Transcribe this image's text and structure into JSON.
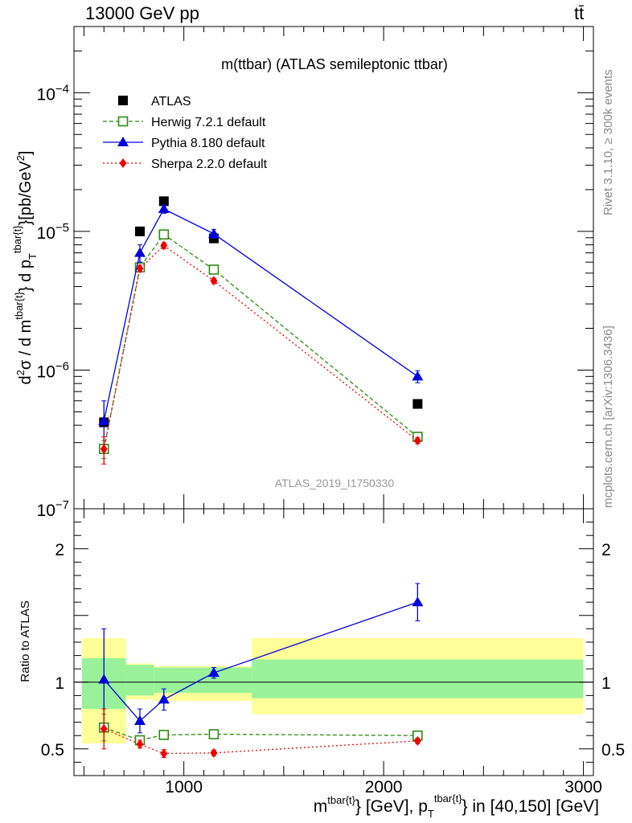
{
  "header": {
    "left": "13000 GeV pp",
    "right": "tt̄"
  },
  "side_notes": {
    "rivet": "Rivet 3.1.10, ≥ 300k events",
    "source": "mcplots.cern.ch [arXiv:1306.3436]"
  },
  "chart_data": [
    {
      "type": "scatter",
      "title": "m(ttbar) (ATLAS semileptonic ttbar)",
      "watermark": "ATLAS_2019_I1750330",
      "ylabel": "d²σ / d m^{tbar{t}} d p_T^{tbar{t}} [pb/GeV²]",
      "xlim": [
        450,
        3050
      ],
      "ylim": [
        1e-07,
        0.0003
      ],
      "yscale": "log",
      "yticks": [
        {
          "value": 1e-07,
          "base": "10",
          "exp": "−7"
        },
        {
          "value": 1e-06,
          "base": "10",
          "exp": "−6"
        },
        {
          "value": 1e-05,
          "base": "10",
          "exp": "−5"
        },
        {
          "value": 0.0001,
          "base": "10",
          "exp": "−4"
        }
      ],
      "legend_position": "top-left",
      "series": [
        {
          "name": "ATLAS",
          "color": "#000000",
          "marker": "square",
          "line": "none",
          "x": [
            600,
            780,
            900,
            1150,
            2170
          ],
          "y": [
            4.2e-07,
            1e-05,
            1.65e-05,
            8.9e-06,
            5.7e-07
          ]
        },
        {
          "name": "Herwig 7.2.1 default",
          "color": "#2e8b12",
          "marker": "open-square",
          "line": "dashed",
          "x": [
            600,
            780,
            900,
            1150,
            2170
          ],
          "y": [
            2.7e-07,
            5.5e-06,
            9.5e-06,
            5.3e-06,
            3.3e-07
          ],
          "err": [
            4e-08,
            2e-07,
            3e-07,
            2e-07,
            1.5e-08
          ]
        },
        {
          "name": "Pythia 8.180 default",
          "color": "#0000dd",
          "marker": "triangle",
          "line": "solid",
          "x": [
            600,
            780,
            900,
            1150,
            2170
          ],
          "y": [
            4.3e-07,
            7e-06,
            1.45e-05,
            9.6e-06,
            9e-07
          ],
          "err": [
            1.7e-07,
            1e-06,
            1e-06,
            7e-07,
            9e-08
          ]
        },
        {
          "name": "Sherpa 2.2.0 default",
          "color": "#ee0000",
          "marker": "diamond",
          "line": "dotted",
          "x": [
            600,
            780,
            900,
            1150,
            2170
          ],
          "y": [
            2.7e-07,
            5.4e-06,
            7.9e-06,
            4.4e-06,
            3.1e-07
          ],
          "err": [
            6e-08,
            3e-07,
            4e-07,
            2e-07,
            1.5e-08
          ]
        }
      ]
    },
    {
      "type": "scatter",
      "ylabel": "Ratio to ATLAS",
      "xlabel": "m^{tbar{t}} [GeV], p_T^{tbar{t}} in [40,150] [GeV]",
      "xlim": [
        450,
        3050
      ],
      "ylim": [
        0.3,
        2.3
      ],
      "xticks": [
        1000,
        2000,
        3000
      ],
      "yticks": [
        0.5,
        1,
        2
      ],
      "reference_line": 1,
      "bands": [
        {
          "x0": 490,
          "x1": 710,
          "inner": [
            0.8,
            1.18
          ],
          "outer": [
            0.54,
            1.33
          ]
        },
        {
          "x0": 710,
          "x1": 850,
          "inner": [
            0.9,
            1.13
          ],
          "outer": [
            0.87,
            1.14
          ]
        },
        {
          "x0": 850,
          "x1": 1340,
          "inner": [
            0.92,
            1.11
          ],
          "outer": [
            0.86,
            1.12
          ]
        },
        {
          "x0": 1340,
          "x1": 3000,
          "inner": [
            0.88,
            1.17
          ],
          "outer": [
            0.76,
            1.33
          ]
        }
      ],
      "series": [
        {
          "name": "Herwig 7.2.1 default",
          "color": "#2e8b12",
          "marker": "open-square",
          "line": "dashed",
          "x": [
            600,
            780,
            900,
            1150,
            2170
          ],
          "y": [
            0.66,
            0.565,
            0.605,
            0.61,
            0.6
          ],
          "err": [
            0.1,
            0.02,
            0.02,
            0.015,
            0.03
          ]
        },
        {
          "name": "Pythia 8.180 default",
          "color": "#0000dd",
          "marker": "triangle",
          "line": "solid",
          "x": [
            600,
            780,
            900,
            1150,
            2170
          ],
          "y": [
            1.02,
            0.71,
            0.87,
            1.07,
            1.6
          ],
          "err": [
            0.38,
            0.09,
            0.08,
            0.04,
            0.14
          ]
        },
        {
          "name": "Sherpa 2.2.0 default",
          "color": "#ee0000",
          "marker": "diamond",
          "line": "dotted",
          "x": [
            600,
            780,
            900,
            1150,
            2170
          ],
          "y": [
            0.65,
            0.535,
            0.465,
            0.47,
            0.56
          ],
          "err": [
            0.15,
            0.03,
            0.03,
            0.02,
            0.02
          ]
        }
      ]
    }
  ]
}
